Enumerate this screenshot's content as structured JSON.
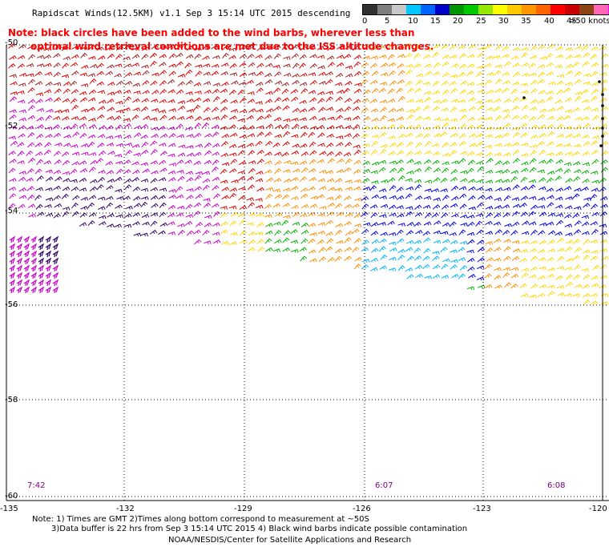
{
  "header": {
    "title": "Rapidscat Winds(12.5KM) v1.1 Sep  3 15:14 UTC 2015 descending",
    "note_line1": "Note: black circles have been added to the wind barbs, wherever less than",
    "note_line2": "optimal wind retrieval conditions are met due to the ISS altitude changes."
  },
  "legend": {
    "labels": [
      "0",
      "5",
      "10",
      "15",
      "20",
      "25",
      "30",
      "35",
      "40",
      "45",
      ">50 knots"
    ],
    "colors": [
      "#303030",
      "#7f7f7f",
      "#c8c8c8",
      "#00c8ff",
      "#0064ff",
      "#0000c8",
      "#009600",
      "#00c800",
      "#96e600",
      "#ffff00",
      "#ffc800",
      "#ff9600",
      "#ff6400",
      "#ff0000",
      "#c80000",
      "#8b4513",
      "#ff69b4",
      "#ff00ff",
      "#c800c8",
      "#640096",
      "#320064"
    ]
  },
  "map": {
    "lat_labels": [
      "-50",
      "-52",
      "-54",
      "-56",
      "-58",
      "-60"
    ],
    "lon_labels": [
      "-135",
      "-132",
      "-129",
      "-126",
      "-123",
      "-120"
    ],
    "pass_times": [
      "7:42",
      "6:07",
      "6:08"
    ],
    "grid_line_color": "#000000",
    "wind_speed_band_colors": {
      "purple": "#c800c8",
      "dark_purple": "#320064",
      "red": "#e00000",
      "dark_red": "#a02020",
      "orange": "#ff8c00",
      "yellow": "#ffd700",
      "green": "#00b400",
      "blue": "#0000e6",
      "cyan": "#00b4ff"
    }
  },
  "footer": {
    "line1": "Note: 1) Times are GMT 2)Times along bottom correspond to measurement at ~50S",
    "line2": "3)Data buffer is 22 hrs from Sep  3 15:14 UTC 2015 4) Black wind barbs indicate possible contamination",
    "line3": "NOAA/NESDIS/Center for Satellite Applications and Research"
  }
}
